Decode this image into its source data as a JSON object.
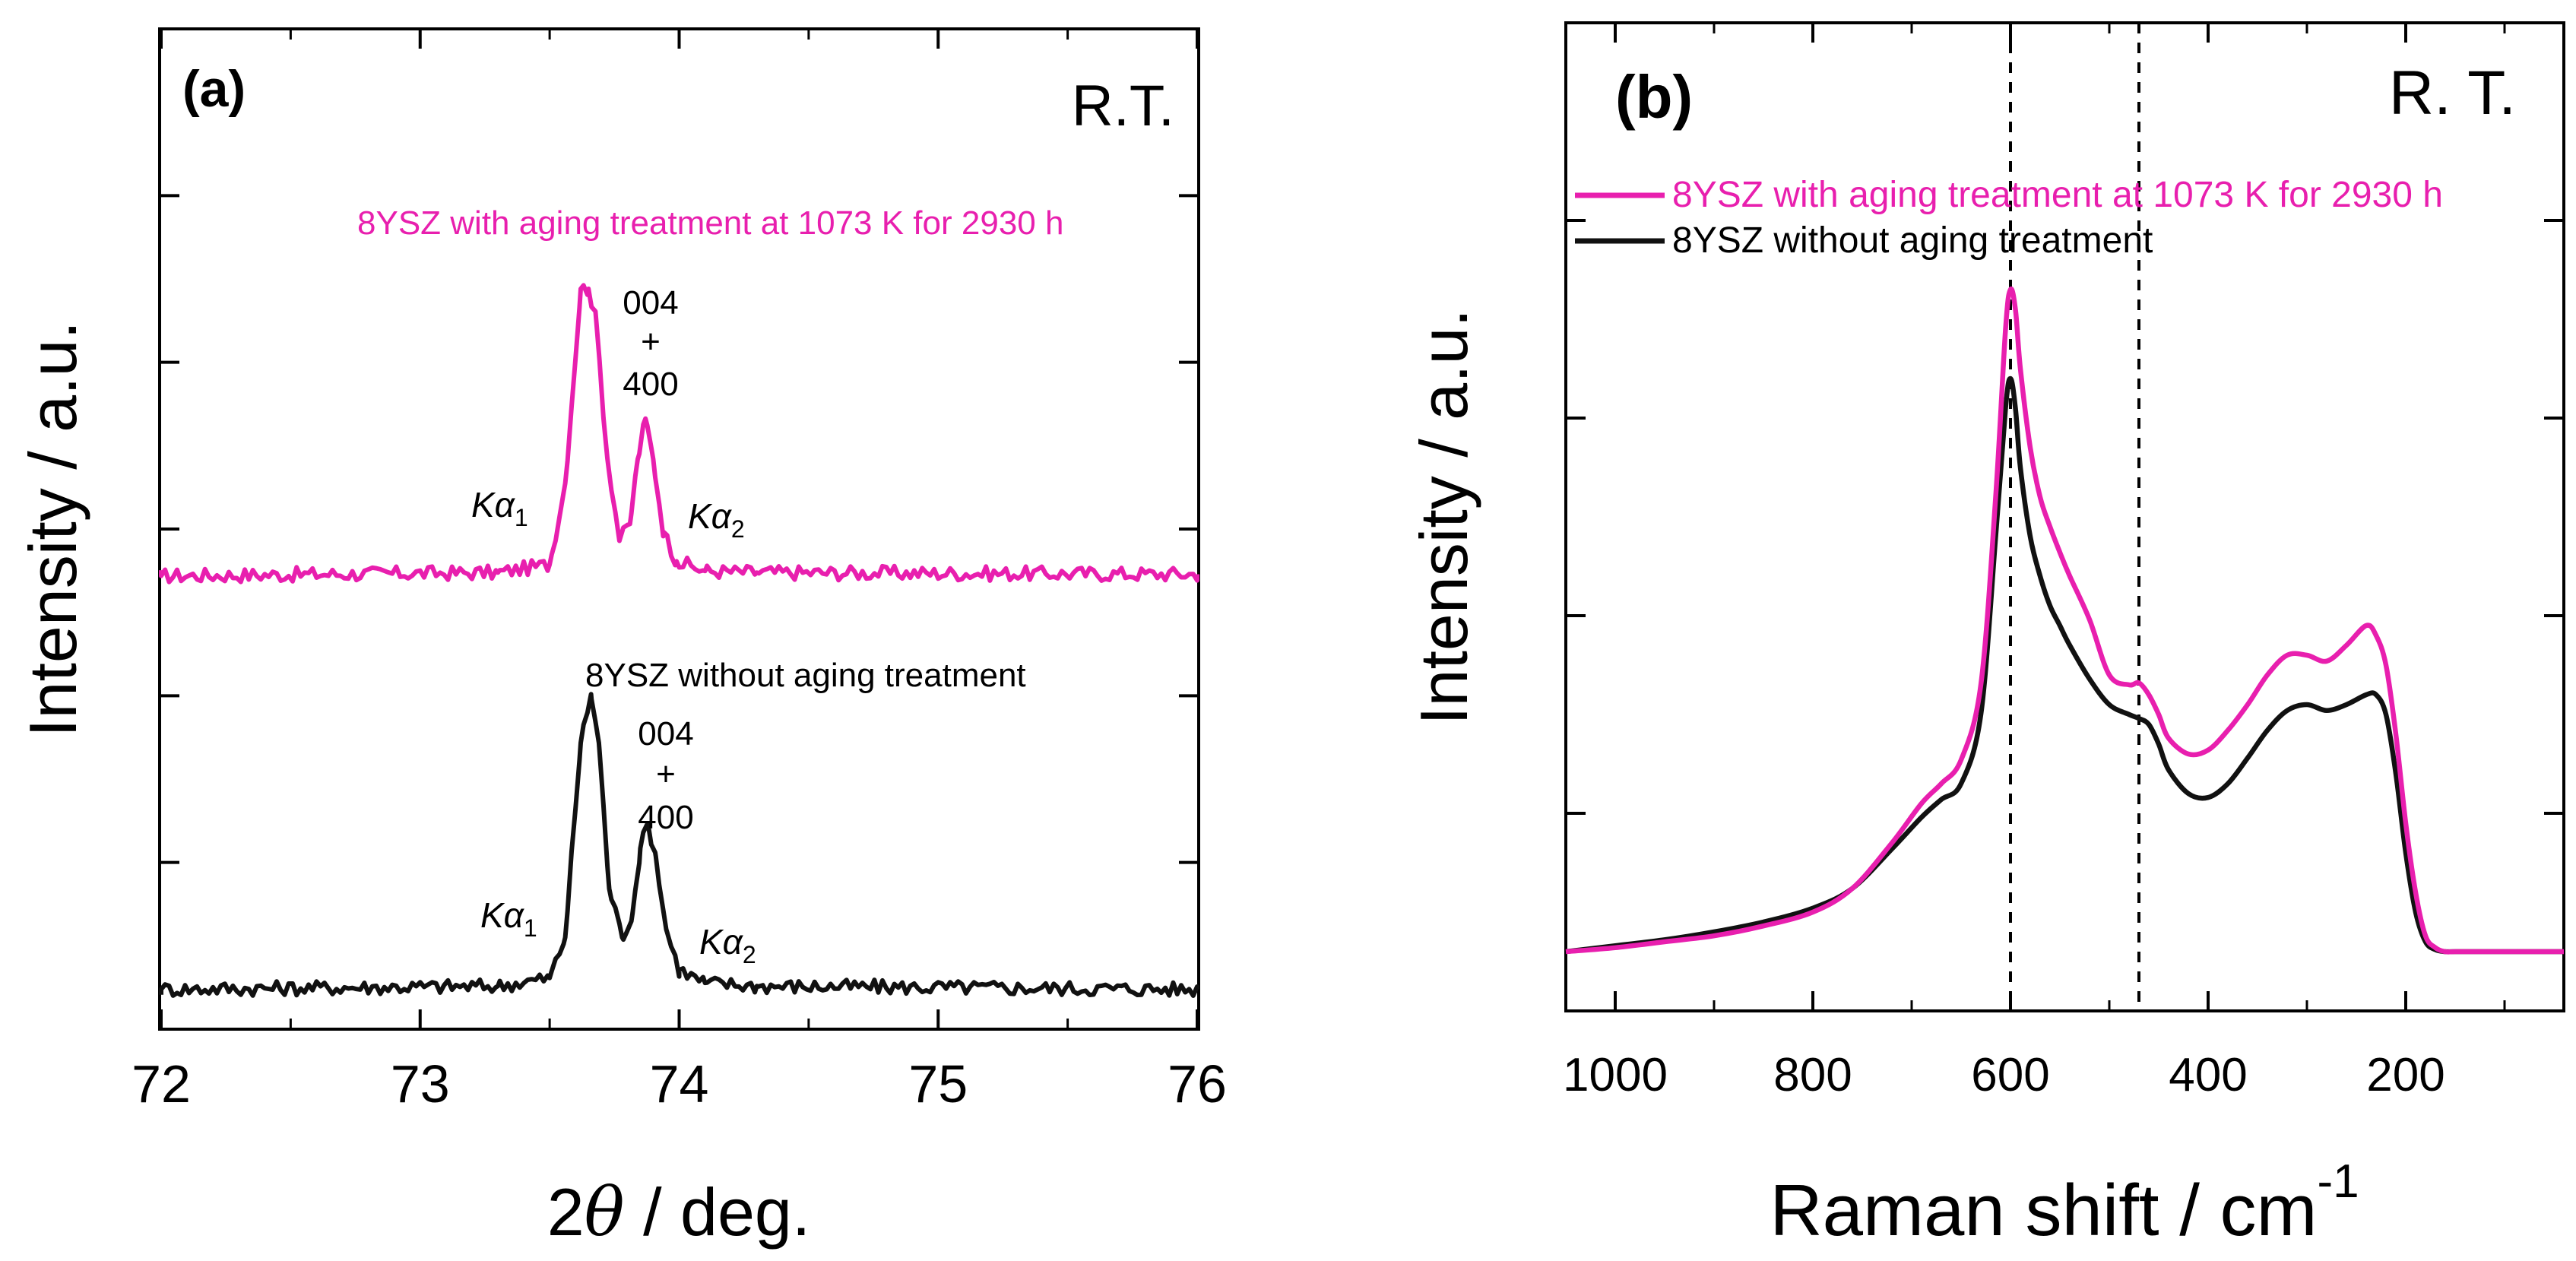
{
  "colors": {
    "aged": "#e81fae",
    "unaged": "#111111",
    "axis": "#000000"
  },
  "chart_data": [
    {
      "type": "line",
      "panel_label": "(a)",
      "condition": "R.T.",
      "title": "",
      "xlabel": "2θ / deg.",
      "xlabel_pre": "2",
      "xlabel_theta": "θ",
      "xlabel_post": " / deg.",
      "ylabel": "Intensity / a.u.",
      "xlim": [
        72,
        76
      ],
      "xticks": [
        "72",
        "73",
        "74",
        "75",
        "76"
      ],
      "ylim": [
        0,
        6
      ],
      "grid": false,
      "series": [
        {
          "name": "8YSZ with aging treatment at 1073 K for 2930 h",
          "color_key": "aged",
          "peaks_label": [
            "004",
            "+",
            "400"
          ],
          "x": [
            72.0,
            73.3,
            73.5,
            73.56,
            73.62,
            73.65,
            73.68,
            73.72,
            73.77,
            73.81,
            73.84,
            73.87,
            73.9,
            73.94,
            73.99,
            74.1,
            74.3,
            76.0
          ],
          "y": [
            2.73,
            2.75,
            2.8,
            3.3,
            4.5,
            4.5,
            4.3,
            3.5,
            2.95,
            3.05,
            3.45,
            3.7,
            3.45,
            3.0,
            2.82,
            2.76,
            2.75,
            2.74
          ]
        },
        {
          "name": "8YSZ without aging treatment",
          "color_key": "unaged",
          "peaks_label": [
            "004",
            "+",
            "400"
          ],
          "x": [
            72.0,
            73.3,
            73.5,
            73.56,
            73.62,
            73.66,
            73.69,
            73.73,
            73.78,
            73.82,
            73.85,
            73.88,
            73.91,
            73.95,
            74.0,
            74.1,
            74.3,
            76.0
          ],
          "y": [
            0.18,
            0.2,
            0.25,
            0.5,
            1.7,
            2.0,
            1.7,
            0.8,
            0.5,
            0.65,
            1.05,
            1.2,
            1.0,
            0.55,
            0.3,
            0.22,
            0.2,
            0.18
          ]
        }
      ],
      "annotations": {
        "ka": "Kα",
        "sub1": "1",
        "sub2": "2"
      }
    },
    {
      "type": "line",
      "panel_label": "(b)",
      "condition": "R. T.",
      "title": "",
      "xlabel": "Raman shift / cm",
      "xlabel_sup": "-1",
      "ylabel": "Intensity / a.u.",
      "xlim": [
        1050,
        40
      ],
      "xticks": [
        "1000",
        "800",
        "600",
        "400",
        "200"
      ],
      "ylim": [
        0,
        5
      ],
      "grid": false,
      "reference_lines_x": [
        600,
        470
      ],
      "legend_position": "top-left",
      "series": [
        {
          "name": "8YSZ with aging treatment at 1073 K for 2930 h",
          "color_key": "aged",
          "x": [
            1050,
            1000,
            950,
            900,
            850,
            800,
            760,
            720,
            690,
            670,
            650,
            630,
            615,
            605,
            600,
            595,
            590,
            580,
            570,
            560,
            550,
            540,
            520,
            500,
            480,
            470,
            460,
            450,
            440,
            420,
            400,
            380,
            360,
            340,
            320,
            300,
            280,
            260,
            240,
            230,
            220,
            210,
            200,
            190,
            180,
            170,
            160,
            150,
            120,
            90,
            60,
            40
          ],
          "y": [
            0.3,
            0.32,
            0.35,
            0.38,
            0.43,
            0.5,
            0.62,
            0.85,
            1.05,
            1.15,
            1.27,
            1.65,
            2.6,
            3.45,
            3.65,
            3.55,
            3.25,
            2.85,
            2.6,
            2.45,
            2.32,
            2.2,
            1.98,
            1.7,
            1.65,
            1.66,
            1.6,
            1.5,
            1.38,
            1.3,
            1.32,
            1.42,
            1.55,
            1.7,
            1.8,
            1.8,
            1.77,
            1.85,
            1.95,
            1.9,
            1.75,
            1.4,
            0.95,
            0.6,
            0.38,
            0.32,
            0.3,
            0.3,
            0.3,
            0.3,
            0.3,
            0.3
          ]
        },
        {
          "name": "8YSZ without aging treatment",
          "color_key": "unaged",
          "x": [
            1050,
            1000,
            950,
            900,
            850,
            800,
            760,
            720,
            690,
            670,
            650,
            630,
            615,
            605,
            600,
            595,
            590,
            580,
            570,
            560,
            550,
            540,
            520,
            500,
            480,
            470,
            460,
            450,
            440,
            420,
            400,
            380,
            360,
            340,
            320,
            300,
            280,
            260,
            240,
            230,
            220,
            210,
            200,
            190,
            180,
            170,
            160,
            150,
            120,
            90,
            60,
            40
          ],
          "y": [
            0.3,
            0.33,
            0.36,
            0.4,
            0.45,
            0.52,
            0.62,
            0.82,
            0.98,
            1.07,
            1.15,
            1.5,
            2.4,
            3.05,
            3.2,
            3.05,
            2.75,
            2.4,
            2.2,
            2.05,
            1.95,
            1.85,
            1.68,
            1.55,
            1.5,
            1.48,
            1.45,
            1.35,
            1.22,
            1.1,
            1.08,
            1.15,
            1.28,
            1.42,
            1.52,
            1.55,
            1.52,
            1.55,
            1.6,
            1.6,
            1.5,
            1.2,
            0.8,
            0.5,
            0.35,
            0.31,
            0.3,
            0.3,
            0.3,
            0.3,
            0.3,
            0.3
          ]
        }
      ]
    }
  ]
}
